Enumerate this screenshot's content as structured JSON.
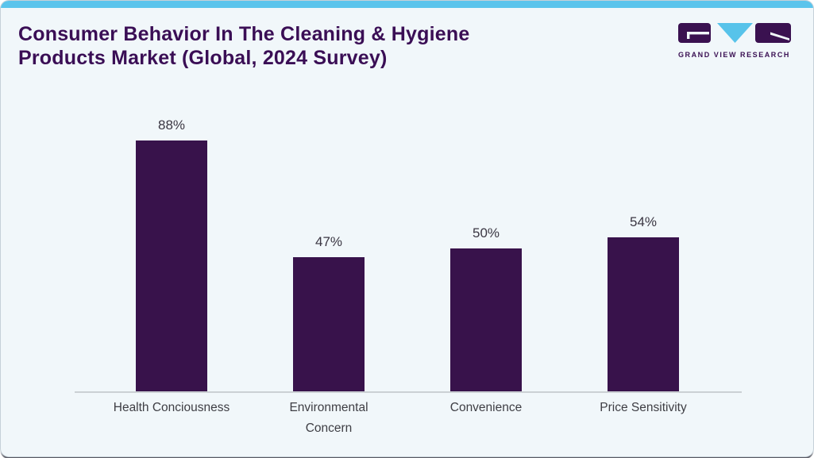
{
  "page": {
    "background_color": "#f1f7fa",
    "accent_bar_color": "#5bc4ec",
    "bottom_edge_color": "#4e4e55"
  },
  "header": {
    "title_lines": [
      "Consumer Behavior In The Cleaning & Hygiene",
      "Products Market (Global, 2024 Survey)"
    ],
    "title_color": "#3a0e55",
    "logo": {
      "caption": "GRAND VIEW RESEARCH",
      "purple": "#3a1150",
      "blue": "#57c3ea"
    }
  },
  "chart_data": {
    "type": "bar",
    "title": "Consumer Behavior In The Cleaning & Hygiene Products Market (Global, 2024 Survey)",
    "categories": [
      "Health Conciousness",
      "Environmental\nConcern",
      "Convenience",
      "Price Sensitivity"
    ],
    "values": [
      88,
      47,
      50,
      54
    ],
    "value_labels": [
      "88%",
      "47%",
      "50%",
      "54%"
    ],
    "value_suffix": "%",
    "bar_color": "#38124b",
    "xlabel": "",
    "ylabel": "",
    "ylim": [
      0,
      100
    ],
    "grid": false,
    "legend": false,
    "axis_line_color": "#cbd0d4",
    "value_label_color": "#3a3642",
    "category_label_color": "#3e3e44"
  }
}
